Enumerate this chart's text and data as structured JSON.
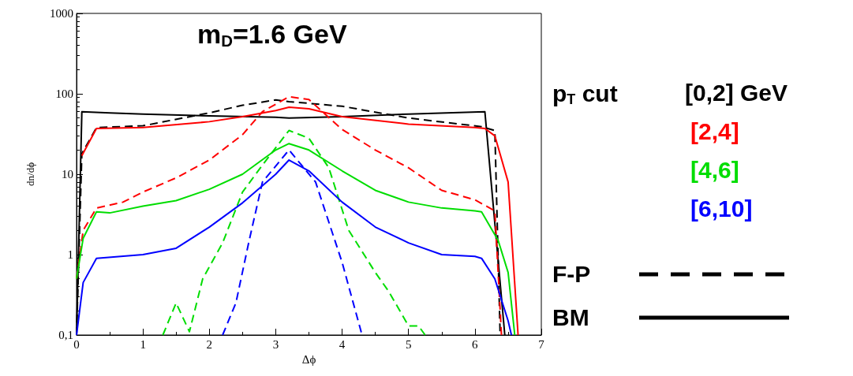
{
  "chart_data": {
    "type": "line",
    "title": "m$_{D}$=1.6 GeV",
    "xlabel": "Δϕ",
    "ylabel": "dn/dϕ",
    "legend_title": "p$_{T}$ cut",
    "legend": "right",
    "log": "y",
    "grid": false,
    "marker": "none",
    "xlim": [
      0,
      7
    ],
    "xticks": [
      0,
      1,
      2,
      3,
      4,
      5,
      6,
      7
    ],
    "ylim": [
      0.1,
      1000
    ],
    "yticks": [
      {
        "value": 0.1,
        "label": "0,1"
      },
      1,
      10,
      100,
      1000
    ],
    "annotations": [
      "F-P",
      "BM"
    ],
    "series": [
      {
        "color": "#000000",
        "line_style": "dashed",
        "x": [
          0,
          0.08,
          0.3,
          1,
          2,
          2.5,
          3,
          3.2,
          4,
          5,
          6.1,
          6.3,
          6.38
        ],
        "values": [
          0.1,
          18,
          38,
          40,
          58,
          72,
          84,
          80,
          70,
          50,
          39,
          35,
          0.1
        ]
      },
      {
        "name": "[0,2] GeV",
        "color": "#000000",
        "line_style": "solid",
        "x": [
          0,
          0.08,
          0.5,
          1,
          2,
          3,
          3.2,
          4,
          5,
          6.15,
          6.45
        ],
        "values": [
          0.1,
          60,
          58,
          56,
          53,
          51,
          50,
          52,
          56,
          60,
          0.1
        ]
      },
      {
        "color": "#ff0000",
        "line_style": "dashed",
        "x": [
          0,
          0.1,
          0.3,
          0.7,
          1,
          1.5,
          2,
          2.5,
          2.8,
          3.2,
          3.5,
          4,
          4.5,
          5,
          5.5,
          6,
          6.3,
          6.4
        ],
        "values": [
          0.5,
          2,
          3.8,
          4.5,
          6,
          9,
          15,
          31,
          60,
          92,
          85,
          36,
          20,
          12,
          6.3,
          4.8,
          3.5,
          0.1
        ]
      },
      {
        "name": "[2,4]",
        "color": "#ff0000",
        "line_style": "solid",
        "x": [
          0.08,
          0.3,
          1,
          2,
          2.5,
          3,
          3.2,
          3.5,
          4,
          5,
          6,
          6.15,
          6.3,
          6.5,
          6.65
        ],
        "values": [
          17,
          37,
          38,
          45,
          52,
          62,
          68,
          65,
          52,
          42,
          38,
          37,
          30,
          8,
          0.1
        ]
      },
      {
        "color": "#00dd00",
        "line_style": "dashed",
        "x": [
          1.3,
          1.5,
          1.7,
          1.9,
          2.2,
          2.5,
          2.8,
          3.2,
          3.5,
          3.8,
          4.1,
          4.5,
          4.7,
          5,
          5.15,
          5.25
        ],
        "values": [
          0.1,
          0.25,
          0.11,
          0.5,
          1.4,
          6,
          13,
          35,
          28,
          12,
          2,
          0.6,
          0.35,
          0.13,
          0.13,
          0.1
        ]
      },
      {
        "name": "[4,6]",
        "color": "#00dd00",
        "line_style": "solid",
        "x": [
          0,
          0.1,
          0.3,
          0.5,
          1,
          1.5,
          2,
          2.5,
          3,
          3.2,
          3.5,
          4,
          4.5,
          5,
          5.5,
          6,
          6.1,
          6.35,
          6.5,
          6.6
        ],
        "values": [
          0.5,
          1.6,
          3.4,
          3.3,
          4,
          4.7,
          6.5,
          10,
          20,
          24,
          20,
          11,
          6.3,
          4.5,
          3.8,
          3.5,
          3.4,
          1.5,
          0.6,
          0.1
        ]
      },
      {
        "color": "#0000ff",
        "line_style": "dashed",
        "x": [
          2.2,
          2.4,
          2.6,
          2.8,
          3.2,
          3.6,
          4,
          4.3
        ],
        "values": [
          0.1,
          0.25,
          1.5,
          8,
          20,
          8,
          0.8,
          0.1
        ]
      },
      {
        "name": "[6,10]",
        "color": "#0000ff",
        "line_style": "solid",
        "x": [
          0,
          0.1,
          0.3,
          1,
          1.5,
          2,
          2.5,
          3,
          3.2,
          3.5,
          4,
          4.5,
          5,
          5.5,
          6,
          6.1,
          6.3,
          6.5,
          6.55
        ],
        "values": [
          0.1,
          0.45,
          0.9,
          1,
          1.2,
          2.2,
          4.4,
          10,
          15,
          11,
          4.5,
          2.2,
          1.4,
          1,
          0.95,
          0.9,
          0.5,
          0.15,
          0.1
        ]
      }
    ]
  }
}
